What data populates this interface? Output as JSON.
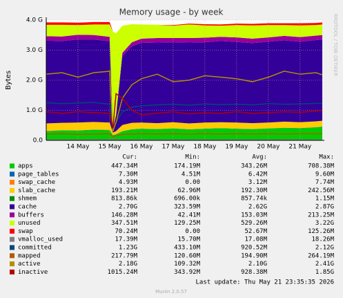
{
  "chart_data": {
    "type": "area",
    "title": "Memory usage - by week",
    "y_label": "Bytes",
    "side_note": "RRDTOOL / TOBI OETIKER",
    "x": [
      13.0,
      13.5,
      14.0,
      14.5,
      15.0,
      15.1,
      15.2,
      15.4,
      15.7,
      16.0,
      16.5,
      17.0,
      17.5,
      18.0,
      18.5,
      19.0,
      19.5,
      20.0,
      20.5,
      21.0,
      21.5,
      21.7
    ],
    "xlim": [
      13.0,
      21.7
    ],
    "xticks": [
      {
        "value": 14,
        "label": "14 May"
      },
      {
        "value": 15,
        "label": "15 May"
      },
      {
        "value": 16,
        "label": "16 May"
      },
      {
        "value": 17,
        "label": "17 May"
      },
      {
        "value": 18,
        "label": "18 May"
      },
      {
        "value": 19,
        "label": "19 May"
      },
      {
        "value": 20,
        "label": "20 May"
      },
      {
        "value": 21,
        "label": "21 May"
      }
    ],
    "ylim": [
      0,
      4000000000.0
    ],
    "yticks": [
      {
        "value": 0,
        "label": "0.0"
      },
      {
        "value": 1000000000.0,
        "label": "1.0 G"
      },
      {
        "value": 2000000000.0,
        "label": "2.0 G"
      },
      {
        "value": 3000000000.0,
        "label": "3.0 G"
      },
      {
        "value": 4000000000.0,
        "label": "4.0 G"
      }
    ],
    "grid": true,
    "stats_headers": [
      "Cur:",
      "Min:",
      "Avg:",
      "Max:"
    ],
    "series": [
      {
        "name": "apps",
        "color": "#00cc00",
        "style": "area",
        "stats": [
          "447.34M",
          "174.19M",
          "343.26M",
          "708.38M"
        ],
        "values": [
          300000000.0,
          330000000.0,
          320000000.0,
          350000000.0,
          340000000.0,
          170000000.0,
          200000000.0,
          300000000.0,
          360000000.0,
          380000000.0,
          370000000.0,
          390000000.0,
          360000000.0,
          380000000.0,
          400000000.0,
          380000000.0,
          370000000.0,
          390000000.0,
          410000000.0,
          400000000.0,
          430000000.0,
          450000000.0
        ]
      },
      {
        "name": "page_tables",
        "color": "#0066b3",
        "style": "area",
        "stats": [
          "7.30M",
          "4.51M",
          "6.42M",
          "9.60M"
        ],
        "values": [
          7000000.0,
          7000000.0,
          7000000.0,
          7000000.0,
          7000000.0,
          5000000.0,
          5000000.0,
          6000000.0,
          7000000.0,
          7000000.0,
          7000000.0,
          7000000.0,
          7000000.0,
          7000000.0,
          7000000.0,
          7000000.0,
          7000000.0,
          7000000.0,
          7000000.0,
          7000000.0,
          7000000.0,
          7000000.0
        ]
      },
      {
        "name": "swap_cache",
        "color": "#ff8000",
        "style": "area",
        "stats": [
          "4.93M",
          "0.00",
          "3.12M",
          "7.74M"
        ],
        "values": [
          5000000.0,
          5000000.0,
          5000000.0,
          5000000.0,
          5000000.0,
          3000000.0,
          3000000.0,
          4000000.0,
          5000000.0,
          5000000.0,
          5000000.0,
          5000000.0,
          5000000.0,
          5000000.0,
          5000000.0,
          5000000.0,
          5000000.0,
          5000000.0,
          5000000.0,
          5000000.0,
          5000000.0,
          5000000.0
        ]
      },
      {
        "name": "slab_cache",
        "color": "#ffcc00",
        "style": "area",
        "stats": [
          "193.21M",
          "62.96M",
          "192.30M",
          "242.56M"
        ],
        "values": [
          250000000.0,
          240000000.0,
          260000000.0,
          250000000.0,
          240000000.0,
          80000000.0,
          100000000.0,
          200000000.0,
          210000000.0,
          200000000.0,
          190000000.0,
          200000000.0,
          190000000.0,
          200000000.0,
          190000000.0,
          200000000.0,
          190000000.0,
          190000000.0,
          200000000.0,
          190000000.0,
          190000000.0,
          190000000.0
        ]
      },
      {
        "name": "shmem",
        "color": "#008f00",
        "style": "area",
        "stats": [
          "813.86k",
          "696.00k",
          "857.74k",
          "1.15M"
        ],
        "values": [
          800000.0,
          800000.0,
          800000.0,
          800000.0,
          800000.0,
          700000.0,
          700000.0,
          800000.0,
          800000.0,
          800000.0,
          800000.0,
          800000.0,
          800000.0,
          800000.0,
          800000.0,
          800000.0,
          800000.0,
          800000.0,
          800000.0,
          800000.0,
          800000.0,
          800000.0
        ]
      },
      {
        "name": "cache",
        "color": "#330099",
        "style": "area",
        "stats": [
          "2.70G",
          "323.59M",
          "2.62G",
          "2.87G"
        ],
        "values": [
          2750000000.0,
          2720000000.0,
          2760000000.0,
          2740000000.0,
          2700000000.0,
          100000000.0,
          500000000.0,
          2300000000.0,
          2550000000.0,
          2650000000.0,
          2680000000.0,
          2660000000.0,
          2690000000.0,
          2670000000.0,
          2700000000.0,
          2680000000.0,
          2660000000.0,
          2690000000.0,
          2700000000.0,
          2680000000.0,
          2700000000.0,
          2700000000.0
        ]
      },
      {
        "name": "buffers",
        "color": "#990099",
        "style": "area",
        "stats": [
          "146.28M",
          "42.41M",
          "153.03M",
          "213.25M"
        ],
        "values": [
          150000000.0,
          150000000.0,
          160000000.0,
          150000000.0,
          150000000.0,
          40000000.0,
          50000000.0,
          100000000.0,
          130000000.0,
          140000000.0,
          150000000.0,
          140000000.0,
          150000000.0,
          150000000.0,
          140000000.0,
          150000000.0,
          150000000.0,
          140000000.0,
          150000000.0,
          150000000.0,
          150000000.0,
          150000000.0
        ]
      },
      {
        "name": "unused",
        "color": "#ccff00",
        "style": "area",
        "stats": [
          "347.51M",
          "129.25M",
          "529.26M",
          "3.22G"
        ],
        "values": [
          380000000.0,
          390000000.0,
          320000000.0,
          350000000.0,
          410000000.0,
          3220000000.0,
          2700000000.0,
          900000000.0,
          600000000.0,
          470000000.0,
          440000000.0,
          410000000.0,
          450000000.0,
          410000000.0,
          370000000.0,
          410000000.0,
          440000000.0,
          410000000.0,
          360000000.0,
          390000000.0,
          350000000.0,
          350000000.0
        ]
      },
      {
        "name": "swap",
        "color": "#ff0000",
        "style": "area",
        "stats": [
          "70.24M",
          "0.00",
          "52.67M",
          "125.26M"
        ],
        "values": [
          80000000.0,
          80000000.0,
          80000000.0,
          80000000.0,
          80000000.0,
          0,
          0,
          0,
          0,
          0,
          0,
          20000000.0,
          30000000.0,
          40000000.0,
          40000000.0,
          50000000.0,
          50000000.0,
          60000000.0,
          60000000.0,
          70000000.0,
          70000000.0,
          70000000.0
        ]
      },
      {
        "name": "vmalloc_used",
        "color": "#808080",
        "style": "line",
        "stats": [
          "17.39M",
          "15.70M",
          "17.08M",
          "18.26M"
        ],
        "values": [
          17000000.0,
          17000000.0,
          17000000.0,
          17000000.0,
          17000000.0,
          16000000.0,
          16000000.0,
          17000000.0,
          17000000.0,
          17000000.0,
          17000000.0,
          17000000.0,
          17000000.0,
          17000000.0,
          17000000.0,
          17000000.0,
          17000000.0,
          17000000.0,
          17000000.0,
          17000000.0,
          17000000.0,
          17000000.0
        ]
      },
      {
        "name": "committed",
        "color": "#00487d",
        "style": "line",
        "stats": [
          "1.23G",
          "433.10M",
          "920.52M",
          "2.12G"
        ],
        "values": [
          1250000000.0,
          1220000000.0,
          1240000000.0,
          1260000000.0,
          1200000000.0,
          450000000.0,
          600000000.0,
          950000000.0,
          1100000000.0,
          1150000000.0,
          1180000000.0,
          1200000000.0,
          1170000000.0,
          1210000000.0,
          1190000000.0,
          1200000000.0,
          1180000000.0,
          1220000000.0,
          1200000000.0,
          1210000000.0,
          1230000000.0,
          1230000000.0
        ]
      },
      {
        "name": "mapped",
        "color": "#b35a00",
        "style": "line",
        "stats": [
          "217.79M",
          "120.60M",
          "194.90M",
          "264.19M"
        ],
        "values": [
          210000000.0,
          220000000.0,
          200000000.0,
          210000000.0,
          220000000.0,
          120000000.0,
          150000000.0,
          200000000.0,
          210000000.0,
          220000000.0,
          210000000.0,
          220000000.0,
          210000000.0,
          220000000.0,
          210000000.0,
          220000000.0,
          210000000.0,
          220000000.0,
          210000000.0,
          220000000.0,
          220000000.0,
          220000000.0
        ]
      },
      {
        "name": "active",
        "color": "#b38f00",
        "style": "line",
        "stats": [
          "2.18G",
          "109.32M",
          "2.10G",
          "2.41G"
        ],
        "values": [
          2200000000.0,
          2250000000.0,
          2100000000.0,
          2250000000.0,
          2300000000.0,
          300000000.0,
          600000000.0,
          1400000000.0,
          1850000000.0,
          2050000000.0,
          2200000000.0,
          1950000000.0,
          2000000000.0,
          2150000000.0,
          2100000000.0,
          2050000000.0,
          1950000000.0,
          2100000000.0,
          2300000000.0,
          2200000000.0,
          2250000000.0,
          2180000000.0
        ]
      },
      {
        "name": "inactive",
        "color": "#b30000",
        "style": "line",
        "stats": [
          "1015.24M",
          "343.92M",
          "928.38M",
          "1.85G"
        ],
        "values": [
          950000000.0,
          900000000.0,
          950000000.0,
          920000000.0,
          900000000.0,
          400000000.0,
          1550000000.0,
          1400000000.0,
          1000000000.0,
          850000000.0,
          900000000.0,
          950000000.0,
          880000000.0,
          920000000.0,
          900000000.0,
          950000000.0,
          900000000.0,
          920000000.0,
          950000000.0,
          930000000.0,
          970000000.0,
          1000000000.0
        ]
      }
    ],
    "last_update": "Last update: Thu May 21 23:35:35 2026",
    "footer": "Munin 2.0.57"
  }
}
